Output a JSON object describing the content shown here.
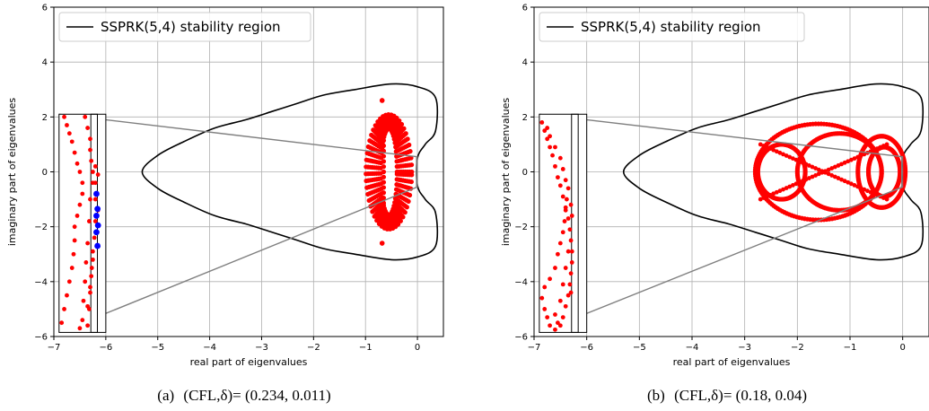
{
  "chart_data": [
    {
      "type": "scatter",
      "caption_prefix": "(a)",
      "caption_params": "(CFL,δ)=",
      "caption_values": "(0.234, 0.011)",
      "xlabel": "real part of eigenvalues",
      "ylabel": "imaginary part of eigenvalues",
      "xlim": [
        -7,
        0.5
      ],
      "ylim": [
        -6,
        6
      ],
      "xticks": [
        -7,
        -6,
        -5,
        -4,
        -3,
        -2,
        -1,
        0
      ],
      "yticks": [
        -6,
        -4,
        -2,
        0,
        2,
        4,
        6
      ],
      "xtick_labels": [
        "−7",
        "−6",
        "−5",
        "−4",
        "−3",
        "−2",
        "−1",
        "0"
      ],
      "ytick_labels": [
        "−6",
        "−4",
        "−2",
        "0",
        "2",
        "4",
        "6"
      ],
      "grid": true,
      "legend_label": "SSPRK(5,4) stability region",
      "legend_location": "upper-left",
      "stability_boundary": [
        [
          0,
          3.1
        ],
        [
          -0.5,
          3.2
        ],
        [
          -1.2,
          3.0
        ],
        [
          -1.8,
          2.8
        ],
        [
          -2.3,
          2.5
        ],
        [
          -2.8,
          2.2
        ],
        [
          -3.3,
          1.9
        ],
        [
          -3.9,
          1.6
        ],
        [
          -4.5,
          1.1
        ],
        [
          -5.0,
          0.6
        ],
        [
          -5.3,
          0
        ],
        [
          -5.0,
          -0.6
        ],
        [
          -4.5,
          -1.1
        ],
        [
          -3.9,
          -1.6
        ],
        [
          -3.3,
          -1.9
        ],
        [
          -2.8,
          -2.2
        ],
        [
          -2.3,
          -2.5
        ],
        [
          -1.8,
          -2.8
        ],
        [
          -1.2,
          -3.0
        ],
        [
          -0.5,
          -3.2
        ],
        [
          0,
          -3.1
        ],
        [
          0.35,
          -2.7
        ],
        [
          0.35,
          -1.5
        ],
        [
          0.15,
          -1.0
        ],
        [
          0.0,
          -0.5
        ],
        [
          0.0,
          0.5
        ],
        [
          0.15,
          1.0
        ],
        [
          0.35,
          1.5
        ],
        [
          0.35,
          2.7
        ],
        [
          0,
          3.1
        ]
      ],
      "zoom_box": {
        "xmin": -0.02,
        "xmax": 0.0,
        "ymin": -0.55,
        "ymax": 0.55
      },
      "inset": {
        "xmin": -6.9,
        "xmax": -6.0,
        "ymin": -5.85,
        "ymax": 2.1
      },
      "eigenvalue_cluster": {
        "center_re": -0.55,
        "center_im": 0,
        "radius_re": 0.45,
        "radius_im": 2.1,
        "extra_points": [
          [
            -0.68,
            2.6
          ],
          [
            -0.68,
            -2.6
          ]
        ]
      },
      "inset_points_red": [
        [
          -6.8,
          2.0
        ],
        [
          -6.75,
          1.7
        ],
        [
          -6.7,
          1.4
        ],
        [
          -6.65,
          1.1
        ],
        [
          -6.6,
          0.7
        ],
        [
          -6.55,
          0.3
        ],
        [
          -6.5,
          0.0
        ],
        [
          -6.45,
          -0.4
        ],
        [
          -6.45,
          -0.8
        ],
        [
          -6.5,
          -1.2
        ],
        [
          -6.55,
          -1.6
        ],
        [
          -6.6,
          -2.0
        ],
        [
          -6.6,
          -2.5
        ],
        [
          -6.62,
          -3.0
        ],
        [
          -6.65,
          -3.5
        ],
        [
          -6.7,
          -4.0
        ],
        [
          -6.75,
          -4.5
        ],
        [
          -6.8,
          -5.0
        ],
        [
          -6.85,
          -5.5
        ],
        [
          -6.4,
          2.0
        ],
        [
          -6.35,
          1.6
        ],
        [
          -6.3,
          1.2
        ],
        [
          -6.3,
          0.8
        ],
        [
          -6.28,
          0.4
        ],
        [
          -6.25,
          0.0
        ],
        [
          -6.25,
          -0.4
        ],
        [
          -6.3,
          -1.0
        ],
        [
          -6.32,
          -1.8
        ],
        [
          -6.35,
          -2.6
        ],
        [
          -6.38,
          -3.3
        ],
        [
          -6.4,
          -4.0
        ],
        [
          -6.43,
          -4.7
        ],
        [
          -6.45,
          -5.4
        ],
        [
          -6.5,
          -5.7
        ],
        [
          -6.2,
          0.2
        ],
        [
          -6.2,
          -0.4
        ],
        [
          -6.2,
          -1.0
        ],
        [
          -6.2,
          -1.8
        ],
        [
          -6.22,
          -2.4
        ],
        [
          -6.25,
          -3.2
        ],
        [
          -6.28,
          -3.8
        ],
        [
          -6.3,
          -4.4
        ],
        [
          -6.32,
          -5.0
        ],
        [
          -6.35,
          -5.6
        ],
        [
          -6.25,
          -2.9
        ],
        [
          -6.27,
          -3.5
        ],
        [
          -6.3,
          -4.2
        ],
        [
          -6.35,
          -4.9
        ],
        [
          -6.15,
          -0.1
        ],
        [
          -6.15,
          -1.4
        ],
        [
          -6.18,
          -2.2
        ]
      ],
      "inset_points_blue": [
        [
          -6.18,
          -0.8
        ],
        [
          -6.16,
          -1.35
        ],
        [
          -6.18,
          -1.6
        ],
        [
          -6.15,
          -1.95
        ],
        [
          -6.18,
          -2.2
        ],
        [
          -6.16,
          -2.7
        ]
      ]
    },
    {
      "type": "scatter",
      "caption_prefix": "(b)",
      "caption_params": "(CFL,δ)=",
      "caption_values": "(0.18, 0.04)",
      "xlabel": "real part of eigenvalues",
      "ylabel": "imaginary part of eigenvalues",
      "xlim": [
        -7,
        0.5
      ],
      "ylim": [
        -6,
        6
      ],
      "xticks": [
        -7,
        -6,
        -5,
        -4,
        -3,
        -2,
        -1,
        0
      ],
      "yticks": [
        -6,
        -4,
        -2,
        0,
        2,
        4,
        6
      ],
      "xtick_labels": [
        "−7",
        "−6",
        "−5",
        "−4",
        "−3",
        "−2",
        "−1",
        "0"
      ],
      "ytick_labels": [
        "−6",
        "−4",
        "−2",
        "0",
        "2",
        "4",
        "6"
      ],
      "grid": true,
      "legend_label": "SSPRK(5,4) stability region",
      "legend_location": "upper-left",
      "stability_boundary": [
        [
          0,
          3.1
        ],
        [
          -0.5,
          3.2
        ],
        [
          -1.2,
          3.0
        ],
        [
          -1.8,
          2.8
        ],
        [
          -2.3,
          2.5
        ],
        [
          -2.8,
          2.2
        ],
        [
          -3.3,
          1.9
        ],
        [
          -3.9,
          1.6
        ],
        [
          -4.5,
          1.1
        ],
        [
          -5.0,
          0.6
        ],
        [
          -5.3,
          0
        ],
        [
          -5.0,
          -0.6
        ],
        [
          -4.5,
          -1.1
        ],
        [
          -3.9,
          -1.6
        ],
        [
          -3.3,
          -1.9
        ],
        [
          -2.8,
          -2.2
        ],
        [
          -2.3,
          -2.5
        ],
        [
          -1.8,
          -2.8
        ],
        [
          -1.2,
          -3.0
        ],
        [
          -0.5,
          -3.2
        ],
        [
          0,
          -3.1
        ],
        [
          0.35,
          -2.7
        ],
        [
          0.35,
          -1.5
        ],
        [
          0.15,
          -1.0
        ],
        [
          0.0,
          -0.5
        ],
        [
          0.0,
          0.5
        ],
        [
          0.15,
          1.0
        ],
        [
          0.35,
          1.5
        ],
        [
          0.35,
          2.7
        ],
        [
          0,
          3.1
        ]
      ],
      "zoom_box": {
        "xmin": -0.02,
        "xmax": 0.0,
        "ymin": -0.55,
        "ymax": 0.55
      },
      "inset": {
        "xmin": -6.9,
        "xmax": -6.0,
        "ymin": -5.85,
        "ymax": 2.1
      },
      "eigenvalue_rings": [
        {
          "cx": -1.6,
          "cy": 0,
          "rx": 1.2,
          "ry": 1.75
        },
        {
          "cx": -1.2,
          "cy": 0,
          "rx": 0.8,
          "ry": 1.4
        },
        {
          "cx": -0.35,
          "cy": 0,
          "rx": 0.3,
          "ry": 0.9
        },
        {
          "cx": -0.4,
          "cy": 0,
          "rx": 0.45,
          "ry": 1.3
        },
        {
          "cx": -2.3,
          "cy": 0,
          "rx": 0.45,
          "ry": 1.0
        }
      ],
      "inset_points_red": [
        [
          -6.85,
          1.8
        ],
        [
          -6.8,
          1.5
        ],
        [
          -6.75,
          1.2
        ],
        [
          -6.7,
          0.9
        ],
        [
          -6.65,
          0.6
        ],
        [
          -6.6,
          0.2
        ],
        [
          -6.55,
          -0.2
        ],
        [
          -6.5,
          -0.5
        ],
        [
          -6.45,
          -0.9
        ],
        [
          -6.4,
          -1.3
        ],
        [
          -6.35,
          -1.7
        ],
        [
          -6.32,
          -2.1
        ],
        [
          -6.3,
          -2.5
        ],
        [
          -6.28,
          -2.9
        ],
        [
          -6.28,
          -3.3
        ],
        [
          -6.3,
          -3.7
        ],
        [
          -6.32,
          -4.1
        ],
        [
          -6.35,
          -4.5
        ],
        [
          -6.4,
          -4.9
        ],
        [
          -6.45,
          -5.3
        ],
        [
          -6.5,
          -5.6
        ],
        [
          -6.6,
          -5.75
        ],
        [
          -6.7,
          -5.6
        ],
        [
          -6.75,
          -5.3
        ],
        [
          -6.8,
          -5.0
        ],
        [
          -6.85,
          -4.6
        ],
        [
          -6.8,
          -4.2
        ],
        [
          -6.7,
          -3.9
        ],
        [
          -6.6,
          -3.5
        ],
        [
          -6.55,
          -3.0
        ],
        [
          -6.5,
          -2.6
        ],
        [
          -6.45,
          -2.2
        ],
        [
          -6.42,
          -1.8
        ],
        [
          -6.4,
          -1.4
        ],
        [
          -6.38,
          -1.0
        ],
        [
          -6.35,
          -0.6
        ],
        [
          -6.35,
          -2.9
        ],
        [
          -6.4,
          -3.5
        ],
        [
          -6.45,
          -4.1
        ],
        [
          -6.5,
          -4.7
        ],
        [
          -6.6,
          -5.2
        ],
        [
          -6.75,
          1.6
        ],
        [
          -6.7,
          1.3
        ],
        [
          -6.6,
          0.9
        ],
        [
          -6.5,
          0.5
        ],
        [
          -6.45,
          0.1
        ],
        [
          -6.4,
          -0.3
        ],
        [
          -6.3,
          -1.2
        ],
        [
          -6.28,
          -1.6
        ],
        [
          -6.3,
          -4.4
        ],
        [
          -6.55,
          -5.5
        ]
      ]
    }
  ]
}
